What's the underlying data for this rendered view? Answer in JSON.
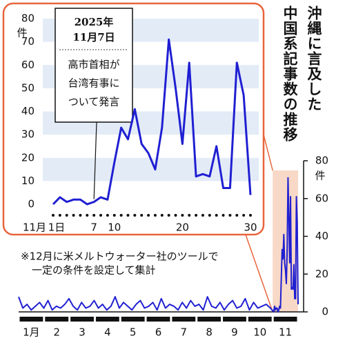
{
  "chart_data": [
    {
      "type": "line",
      "month_label": "11月",
      "x": [
        1,
        2,
        3,
        4,
        5,
        6,
        7,
        8,
        9,
        10,
        11,
        12,
        13,
        14,
        15,
        16,
        17,
        18,
        19,
        20,
        21,
        22,
        23,
        24,
        25,
        26,
        27,
        28,
        29,
        30
      ],
      "values": [
        0,
        3,
        1,
        2,
        2,
        0,
        1,
        3,
        2,
        18,
        33,
        28,
        41,
        26,
        22,
        15,
        33,
        71,
        50,
        26,
        61,
        12,
        13,
        12,
        25,
        7,
        7,
        61,
        47,
        4
      ],
      "color": "#1f1fd2",
      "xlim": [
        1,
        30
      ],
      "xticks": [
        {
          "value": 1,
          "label": "1日"
        },
        7,
        10,
        20,
        30
      ],
      "ylim": [
        0,
        80
      ],
      "yticks": [
        0,
        10,
        20,
        30,
        40,
        50,
        60,
        70,
        80
      ],
      "unit": "件",
      "band_color": "#e3ebf7",
      "annotation": {
        "date": [
          "2025年",
          "11月7日"
        ],
        "text": [
          "高市首相が",
          "台湾有事に",
          "ついて発言"
        ]
      }
    },
    {
      "type": "line",
      "title_lines": [
        "沖縄に言及した",
        "中国系記事数の推移"
      ],
      "note": [
        "※12月に米メルトウォーター社のツールで",
        "一定の条件を設定して集計"
      ],
      "months": [
        "1月",
        "2",
        "3",
        "4",
        "5",
        "6",
        "7",
        "8",
        "9",
        "10",
        "11"
      ],
      "x": [
        1,
        6,
        11,
        16,
        21,
        26,
        31,
        36,
        41,
        46,
        51,
        56,
        61,
        66,
        71,
        76,
        81,
        86,
        91,
        96,
        101,
        106,
        111,
        116,
        121,
        126,
        131,
        136,
        141,
        146,
        151,
        156,
        161,
        166,
        171,
        176,
        181,
        186,
        191,
        196,
        201,
        206,
        211,
        216,
        221,
        226,
        231,
        236,
        241,
        246,
        251,
        256,
        261,
        266,
        271,
        276,
        281,
        286,
        291,
        296,
        301,
        305,
        306,
        307,
        308,
        309,
        310,
        311,
        312,
        313,
        314,
        315,
        316,
        317,
        318,
        319,
        320,
        321,
        322,
        323,
        324,
        325,
        326,
        327,
        328,
        329,
        330,
        331,
        332,
        333,
        334
      ],
      "values": [
        8,
        2,
        4,
        1,
        3,
        5,
        2,
        6,
        1,
        3,
        2,
        4,
        7,
        3,
        1,
        5,
        2,
        3,
        6,
        2,
        4,
        1,
        3,
        8,
        2,
        5,
        3,
        1,
        4,
        6,
        2,
        3,
        5,
        1,
        7,
        2,
        4,
        3,
        1,
        5,
        2,
        6,
        3,
        4,
        1,
        8,
        3,
        2,
        5,
        1,
        4,
        6,
        2,
        3,
        7,
        1,
        5,
        2,
        3,
        4,
        2,
        0,
        3,
        1,
        2,
        2,
        0,
        1,
        3,
        2,
        18,
        33,
        28,
        41,
        26,
        22,
        15,
        33,
        71,
        50,
        26,
        61,
        12,
        13,
        12,
        25,
        7,
        7,
        61,
        47,
        4
      ],
      "color": "#1f1fd2",
      "xlim": [
        1,
        334
      ],
      "ylim": [
        0,
        80
      ],
      "yticks": [
        0,
        20,
        40,
        60,
        80
      ],
      "unit": "件",
      "highlight_color": "#f8d8c6"
    }
  ]
}
